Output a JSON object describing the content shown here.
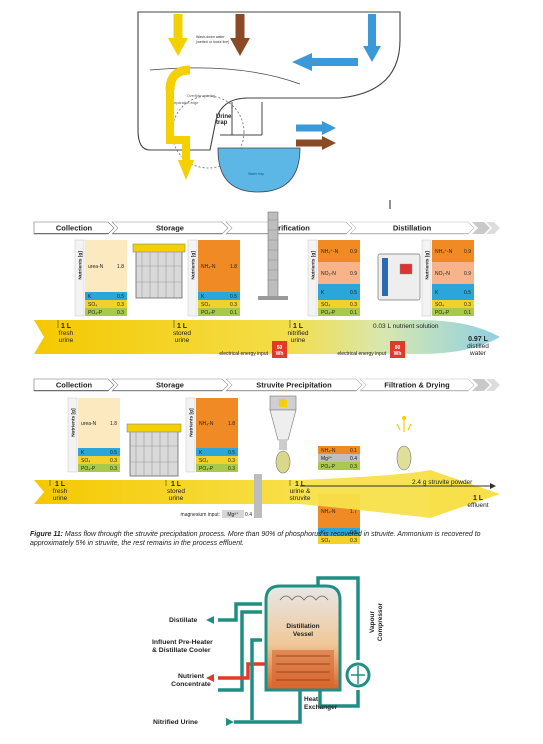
{
  "colors": {
    "yellow": "#f5d000",
    "brown": "#8a4a26",
    "blue": "#3a9ad9",
    "water": "#5cb6e6",
    "orange": "#f08a24",
    "ureaBox": "#fde9bf",
    "kBlue": "#2aa6d9",
    "so4Yellow": "#f2d22a",
    "po4Green": "#a9c94a",
    "no3Peach": "#f7b48a",
    "mgGray": "#bfbfbf",
    "red": "#e23a2a",
    "pipeGreen": "#1f8f84",
    "header": "#7d7d7d"
  },
  "toilet": {
    "urine_trap": "Urine\ntrap"
  },
  "panel1": {
    "stages": [
      "Collection",
      "Storage",
      "Nitrification",
      "Distillation"
    ],
    "axis_label": "Nutrients [g]",
    "boxes": [
      {
        "rows": [
          [
            "urea-N",
            "1.8"
          ],
          [
            "K",
            "0.5"
          ],
          [
            "SO4",
            "0.3"
          ],
          [
            "PO4-P",
            "0.3"
          ]
        ]
      },
      {
        "rows": [
          [
            "NH4-N",
            "1.8"
          ],
          [
            "K",
            "0.5"
          ],
          [
            "SO4",
            "0.3"
          ],
          [
            "PO4-P",
            "0.1"
          ]
        ]
      },
      {
        "rows": [
          [
            "NH4+-N",
            "0.9"
          ],
          [
            "NO3-N",
            "0.9"
          ],
          [
            "K",
            "0.5"
          ],
          [
            "SO4",
            "0.3"
          ],
          [
            "PO4-P",
            "0.1"
          ]
        ]
      },
      {
        "rows": [
          [
            "NH4+-N",
            "0.9"
          ],
          [
            "NO3-N",
            "0.9"
          ],
          [
            "K",
            "0.5"
          ],
          [
            "SO4",
            "0.3"
          ],
          [
            "PO4-P",
            "0.1"
          ]
        ]
      }
    ],
    "flow": [
      {
        "vol": "1 L",
        "label": "fresh\nurine"
      },
      {
        "vol": "1 L",
        "label": "stored\nurine"
      },
      {
        "vol": "1 L",
        "label": "nitrified\nurine"
      }
    ],
    "solution": "0.03 L nutrient solution",
    "distilled_vol": "0.97 L",
    "distilled_label": "distilled\nwater",
    "energy1": {
      "label": "electrical energy input",
      "value": "50\nWh"
    },
    "energy2": {
      "label": "electrical energy input",
      "value": "80\nWh"
    }
  },
  "panel2": {
    "stages": [
      "Collection",
      "Storage",
      "Struvite Precipitation",
      "Filtration & Drying"
    ],
    "axis_label": "Nutrients [g]",
    "boxes": [
      {
        "rows": [
          [
            "urea-N",
            "1.8"
          ],
          [
            "K",
            "0.5"
          ],
          [
            "SO4",
            "0.3"
          ],
          [
            "PO4-P",
            "0.3"
          ]
        ]
      },
      {
        "rows": [
          [
            "NH4-N",
            "1.8"
          ],
          [
            "K",
            "0.5"
          ],
          [
            "SO4",
            "0.3"
          ],
          [
            "PO4-P",
            "0.3"
          ]
        ]
      }
    ],
    "struvite_box": {
      "rows": [
        [
          "NH4-N",
          "0.1"
        ],
        [
          "Mg2+",
          "0.4"
        ],
        [
          "PO4-P",
          "0.3"
        ]
      ]
    },
    "effluent_box": {
      "rows": [
        [
          "NH4-N",
          "1.7"
        ],
        [
          "K",
          "0.5"
        ],
        [
          "SO4",
          "0.3"
        ]
      ]
    },
    "flow": [
      {
        "vol": "1 L",
        "label": "fresh\nurine"
      },
      {
        "vol": "1 L",
        "label": "stored\nurine"
      },
      {
        "vol": "1 L",
        "label": "urine &\nstruvite"
      }
    ],
    "powder": "2.4 g struvite powder",
    "effluent_vol": "1 L",
    "effluent_label": "effluent",
    "mg_label": "magnesium input:",
    "mg_species": "Mg2+",
    "mg_value": "0.4"
  },
  "caption": {
    "lead": "Figure 11:",
    "text": " Mass flow through the struvite precipitation process. More than 90% of phosphorus is recovered in struvite. Ammonium is recovered to approximately 5% in struvite, the rest remains in the process effluent."
  },
  "distiller": {
    "distillate": "Distillate",
    "preheater": "Influent Pre-Heater\n& Distillate Cooler",
    "concentrate": "Nutrient\nConcentrate",
    "nitrified": "Nitrified Urine",
    "vessel": "Distillation\nVessel",
    "compressor": "Vapour\nCompressor",
    "exchanger": "Heat\nExchanger"
  }
}
